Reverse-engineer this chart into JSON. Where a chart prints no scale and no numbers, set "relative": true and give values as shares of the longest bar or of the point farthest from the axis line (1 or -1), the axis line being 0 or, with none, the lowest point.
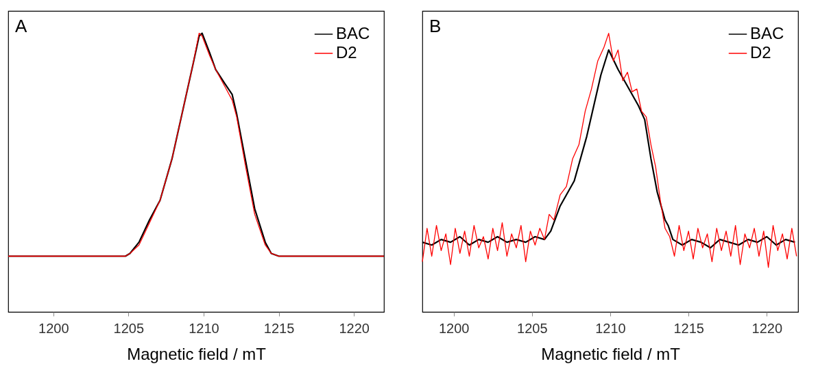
{
  "chart_data": [
    {
      "type": "line",
      "title": "A",
      "xlabel": "Magnetic field / mT",
      "relative": true,
      "xlim": [
        1197,
        1222
      ],
      "xticks": [
        1200,
        1205,
        1210,
        1215,
        1220
      ],
      "tick_labels": "x",
      "grid": false,
      "legend": "top right",
      "marker": "none",
      "line_style": "solid",
      "series": [
        {
          "name": "BAC",
          "color": "#000000",
          "x": [
            1197,
            1200,
            1203,
            1204.8,
            1205.1,
            1205.7,
            1206.4,
            1207.1,
            1207.9,
            1208.6,
            1209.3,
            1209.7,
            1209.9,
            1210.4,
            1210.8,
            1211.4,
            1211.9,
            1212.2,
            1212.8,
            1213.4,
            1214.1,
            1214.5,
            1215,
            1218,
            1222
          ],
          "values": [
            0.2,
            0.2,
            0.2,
            0.2,
            0.21,
            0.25,
            0.33,
            0.4,
            0.55,
            0.72,
            0.89,
            0.99,
            1.0,
            0.93,
            0.87,
            0.82,
            0.78,
            0.71,
            0.54,
            0.37,
            0.25,
            0.21,
            0.2,
            0.2,
            0.2
          ]
        },
        {
          "name": "D2",
          "color": "#ff0000",
          "x": [
            1197,
            1200,
            1203,
            1204.8,
            1205.1,
            1205.7,
            1206.4,
            1207.1,
            1207.9,
            1208.6,
            1209.3,
            1209.7,
            1209.9,
            1210.4,
            1210.8,
            1211.4,
            1211.9,
            1212.2,
            1212.8,
            1213.4,
            1214.1,
            1214.5,
            1215,
            1218,
            1222
          ],
          "values": [
            0.2,
            0.2,
            0.2,
            0.2,
            0.21,
            0.24,
            0.32,
            0.4,
            0.55,
            0.72,
            0.89,
            1.0,
            0.99,
            0.92,
            0.87,
            0.81,
            0.76,
            0.7,
            0.52,
            0.35,
            0.24,
            0.21,
            0.2,
            0.2,
            0.2
          ]
        }
      ]
    },
    {
      "type": "line",
      "title": "B",
      "xlabel": "Magnetic field / mT",
      "relative": true,
      "xlim": [
        1198,
        1222
      ],
      "xticks": [
        1200,
        1205,
        1210,
        1215,
        1220
      ],
      "tick_labels": "x",
      "grid": false,
      "legend": "top right",
      "marker": "none",
      "line_style": "solid",
      "series": [
        {
          "name": "BAC",
          "color": "#000000",
          "x": [
            1198,
            1198.6,
            1199.2,
            1199.8,
            1200.4,
            1201,
            1201.6,
            1202.2,
            1202.8,
            1203.4,
            1204,
            1204.6,
            1205.2,
            1205.8,
            1206.2,
            1206.8,
            1207.7,
            1208.5,
            1209.4,
            1209.9,
            1210.5,
            1211.1,
            1211.8,
            1212.2,
            1212.6,
            1213,
            1213.5,
            1213.7,
            1214,
            1214.6,
            1215.2,
            1215.8,
            1216.4,
            1217,
            1217.6,
            1218.2,
            1218.8,
            1219.4,
            1220,
            1220.6,
            1221.2,
            1221.8
          ],
          "values": [
            0.25,
            0.24,
            0.26,
            0.25,
            0.27,
            0.24,
            0.26,
            0.25,
            0.27,
            0.25,
            0.26,
            0.25,
            0.27,
            0.26,
            0.29,
            0.38,
            0.47,
            0.63,
            0.85,
            0.94,
            0.87,
            0.81,
            0.74,
            0.69,
            0.55,
            0.43,
            0.33,
            0.31,
            0.26,
            0.24,
            0.26,
            0.25,
            0.23,
            0.26,
            0.25,
            0.24,
            0.26,
            0.25,
            0.27,
            0.24,
            0.26,
            0.25
          ]
        },
        {
          "name": "D2",
          "color": "#ff0000",
          "x": [
            1198,
            1198.3,
            1198.6,
            1198.9,
            1199.2,
            1199.5,
            1199.8,
            1200.1,
            1200.4,
            1200.7,
            1201,
            1201.3,
            1201.6,
            1201.9,
            1202.2,
            1202.5,
            1202.8,
            1203.1,
            1203.4,
            1203.7,
            1204,
            1204.3,
            1204.6,
            1204.9,
            1205.2,
            1205.5,
            1205.8,
            1206.1,
            1206.4,
            1206.8,
            1207.2,
            1207.6,
            1208,
            1208.4,
            1208.8,
            1209.2,
            1209.6,
            1209.9,
            1210.2,
            1210.5,
            1210.8,
            1211.1,
            1211.4,
            1211.7,
            1212,
            1212.3,
            1212.6,
            1212.9,
            1213.2,
            1213.5,
            1213.8,
            1214.1,
            1214.4,
            1214.7,
            1215,
            1215.3,
            1215.6,
            1215.9,
            1216.2,
            1216.5,
            1216.8,
            1217.1,
            1217.4,
            1217.7,
            1218,
            1218.3,
            1218.6,
            1218.9,
            1219.2,
            1219.5,
            1219.8,
            1220.1,
            1220.4,
            1220.7,
            1221,
            1221.3,
            1221.6,
            1221.9
          ],
          "values": [
            0.18,
            0.3,
            0.2,
            0.31,
            0.22,
            0.28,
            0.17,
            0.3,
            0.21,
            0.29,
            0.2,
            0.31,
            0.23,
            0.27,
            0.19,
            0.3,
            0.22,
            0.32,
            0.2,
            0.28,
            0.23,
            0.31,
            0.18,
            0.29,
            0.24,
            0.3,
            0.26,
            0.35,
            0.33,
            0.42,
            0.45,
            0.55,
            0.6,
            0.72,
            0.8,
            0.9,
            0.95,
            1.0,
            0.9,
            0.94,
            0.83,
            0.86,
            0.79,
            0.8,
            0.72,
            0.7,
            0.6,
            0.52,
            0.4,
            0.3,
            0.27,
            0.2,
            0.31,
            0.22,
            0.29,
            0.19,
            0.3,
            0.23,
            0.28,
            0.18,
            0.3,
            0.22,
            0.29,
            0.2,
            0.31,
            0.17,
            0.28,
            0.23,
            0.3,
            0.2,
            0.29,
            0.16,
            0.31,
            0.22,
            0.28,
            0.19,
            0.3,
            0.2
          ]
        }
      ]
    }
  ]
}
